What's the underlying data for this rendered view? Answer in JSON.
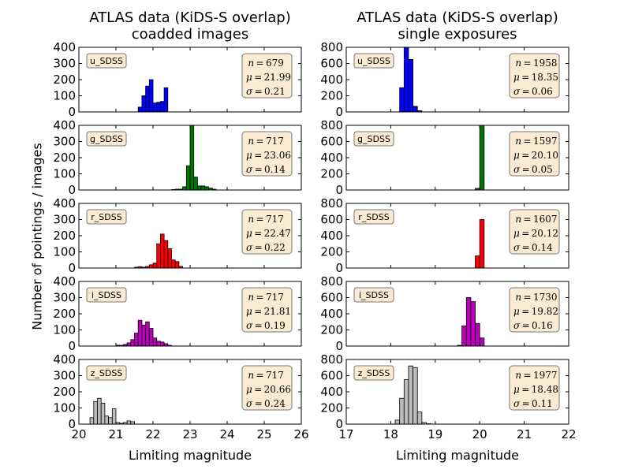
{
  "titles": {
    "left_line1": "ATLAS data (KiDS-S overlap)",
    "left_line2": "coadded images",
    "right_line1": "ATLAS data (KiDS-S overlap)",
    "right_line2": "single exposures"
  },
  "ylabel": "Number of pointings / images",
  "xlabel_left": "Limiting magnitude",
  "xlabel_right": "Limiting magnitude",
  "chart_data": [
    {
      "type": "bar",
      "column": "coadded",
      "filter": "u_SDSS",
      "color": "#0000ff",
      "xlim": [
        20,
        26
      ],
      "ylim": [
        0,
        400
      ],
      "yticks": [
        0,
        100,
        200,
        300,
        400
      ],
      "xticks": [
        20,
        21,
        22,
        23,
        24,
        25,
        26
      ],
      "bin_width": 0.1,
      "bins": [
        21.6,
        21.7,
        21.8,
        21.9,
        22.0,
        22.1,
        22.2,
        22.3
      ],
      "counts": [
        30,
        100,
        160,
        200,
        55,
        60,
        65,
        150
      ],
      "stats": {
        "n": "679",
        "mu": "21.99",
        "sigma": "0.21"
      }
    },
    {
      "type": "bar",
      "column": "single",
      "filter": "u_SDSS",
      "color": "#0000ff",
      "xlim": [
        17,
        22
      ],
      "ylim": [
        0,
        800
      ],
      "yticks": [
        0,
        200,
        400,
        600,
        800
      ],
      "xticks": [
        17,
        18,
        19,
        20,
        21,
        22
      ],
      "bin_width": 0.1,
      "bins": [
        18.2,
        18.3,
        18.4,
        18.5,
        18.6
      ],
      "counts": [
        300,
        800,
        650,
        70,
        15
      ],
      "stats": {
        "n": "1958",
        "mu": "18.35",
        "sigma": "0.06"
      }
    },
    {
      "type": "bar",
      "column": "coadded",
      "filter": "g_SDSS",
      "color": "#007700",
      "xlim": [
        20,
        26
      ],
      "ylim": [
        0,
        400
      ],
      "yticks": [
        0,
        100,
        200,
        300,
        400
      ],
      "xticks": [
        20,
        21,
        22,
        23,
        24,
        25,
        26
      ],
      "bin_width": 0.1,
      "bins": [
        22.5,
        22.6,
        22.7,
        22.8,
        22.9,
        23.0,
        23.1,
        23.2,
        23.3,
        23.4,
        23.5,
        23.6
      ],
      "counts": [
        3,
        5,
        5,
        20,
        150,
        400,
        80,
        25,
        25,
        20,
        12,
        5
      ],
      "stats": {
        "n": "717",
        "mu": "23.06",
        "sigma": "0.14"
      }
    },
    {
      "type": "bar",
      "column": "single",
      "filter": "g_SDSS",
      "color": "#007700",
      "xlim": [
        17,
        22
      ],
      "ylim": [
        0,
        800
      ],
      "yticks": [
        0,
        200,
        400,
        600,
        800
      ],
      "xticks": [
        17,
        18,
        19,
        20,
        21,
        22
      ],
      "bin_width": 0.1,
      "bins": [
        19.9,
        20.0
      ],
      "counts": [
        20,
        800
      ],
      "stats": {
        "n": "1597",
        "mu": "20.10",
        "sigma": "0.05"
      }
    },
    {
      "type": "bar",
      "column": "coadded",
      "filter": "r_SDSS",
      "color": "#ff0000",
      "xlim": [
        20,
        26
      ],
      "ylim": [
        0,
        400
      ],
      "yticks": [
        0,
        100,
        200,
        300,
        400
      ],
      "xticks": [
        20,
        21,
        22,
        23,
        24,
        25,
        26
      ],
      "bin_width": 0.1,
      "bins": [
        21.5,
        21.6,
        21.7,
        21.8,
        21.9,
        22.0,
        22.1,
        22.2,
        22.3,
        22.4,
        22.5,
        22.6,
        22.7
      ],
      "counts": [
        5,
        8,
        5,
        10,
        20,
        30,
        150,
        210,
        170,
        120,
        50,
        40,
        10
      ],
      "stats": {
        "n": "717",
        "mu": "22.47",
        "sigma": "0.22"
      }
    },
    {
      "type": "bar",
      "column": "single",
      "filter": "r_SDSS",
      "color": "#ff0000",
      "xlim": [
        17,
        22
      ],
      "ylim": [
        0,
        800
      ],
      "yticks": [
        0,
        200,
        400,
        600,
        800
      ],
      "xticks": [
        17,
        18,
        19,
        20,
        21,
        22
      ],
      "bin_width": 0.1,
      "bins": [
        19.9,
        20.0
      ],
      "counts": [
        150,
        600
      ],
      "stats": {
        "n": "1607",
        "mu": "20.12",
        "sigma": "0.14"
      }
    },
    {
      "type": "bar",
      "column": "coadded",
      "filter": "i_SDSS",
      "color": "#bb00bb",
      "xlim": [
        20,
        26
      ],
      "ylim": [
        0,
        400
      ],
      "yticks": [
        0,
        100,
        200,
        300,
        400
      ],
      "xticks": [
        20,
        21,
        22,
        23,
        24,
        25,
        26
      ],
      "bin_width": 0.1,
      "bins": [
        21.0,
        21.1,
        21.2,
        21.3,
        21.4,
        21.5,
        21.6,
        21.7,
        21.8,
        21.9,
        22.0,
        22.1,
        22.2,
        22.3,
        22.4
      ],
      "counts": [
        5,
        5,
        10,
        20,
        40,
        80,
        160,
        130,
        150,
        110,
        50,
        30,
        25,
        15,
        5
      ],
      "stats": {
        "n": "717",
        "mu": "21.81",
        "sigma": "0.19"
      }
    },
    {
      "type": "bar",
      "column": "single",
      "filter": "i_SDSS",
      "color": "#bb00bb",
      "xlim": [
        17,
        22
      ],
      "ylim": [
        0,
        800
      ],
      "yticks": [
        0,
        200,
        400,
        600,
        800
      ],
      "xticks": [
        17,
        18,
        19,
        20,
        21,
        22
      ],
      "bin_width": 0.1,
      "bins": [
        19.5,
        19.6,
        19.7,
        19.8,
        19.9,
        20.0
      ],
      "counts": [
        10,
        250,
        600,
        550,
        280,
        100
      ],
      "stats": {
        "n": "1730",
        "mu": "19.82",
        "sigma": "0.16"
      }
    },
    {
      "type": "bar",
      "column": "coadded",
      "filter": "z_SDSS",
      "color": "#bbbbbb",
      "xlim": [
        20,
        26
      ],
      "ylim": [
        0,
        400
      ],
      "yticks": [
        0,
        100,
        200,
        300,
        400
      ],
      "xticks": [
        20,
        21,
        22,
        23,
        24,
        25,
        26
      ],
      "bin_width": 0.1,
      "bins": [
        20.3,
        20.4,
        20.5,
        20.6,
        20.7,
        20.8,
        20.9,
        21.0,
        21.1,
        21.2,
        21.3,
        21.4
      ],
      "counts": [
        40,
        140,
        160,
        130,
        50,
        40,
        95,
        10,
        5,
        10,
        20,
        15
      ],
      "stats": {
        "n": "717",
        "mu": "20.66",
        "sigma": "0.24"
      }
    },
    {
      "type": "bar",
      "column": "single",
      "filter": "z_SDSS",
      "color": "#bbbbbb",
      "xlim": [
        17,
        22
      ],
      "ylim": [
        0,
        800
      ],
      "yticks": [
        0,
        200,
        400,
        600,
        800
      ],
      "xticks": [
        17,
        18,
        19,
        20,
        21,
        22
      ],
      "bin_width": 0.1,
      "bins": [
        18.1,
        18.2,
        18.3,
        18.4,
        18.5,
        18.6,
        18.7,
        18.8
      ],
      "counts": [
        50,
        320,
        550,
        720,
        700,
        150,
        20,
        5
      ],
      "stats": {
        "n": "1977",
        "mu": "18.48",
        "sigma": "0.11"
      }
    }
  ]
}
